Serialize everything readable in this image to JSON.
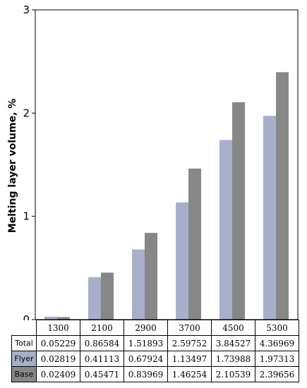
{
  "chart_data": {
    "type": "bar",
    "title": "",
    "xlabel": "",
    "ylabel": "Melting layer volume, %",
    "ylim": [
      0,
      3
    ],
    "yticks": [
      "0",
      "1",
      "2",
      "3"
    ],
    "grid": false,
    "categories": [
      "1300",
      "2100",
      "2900",
      "3700",
      "4500",
      "5300"
    ],
    "series": [
      {
        "name": "Flyer",
        "color": "#a7afca",
        "values": [
          0.02819,
          0.41113,
          0.67924,
          1.13497,
          1.73988,
          1.97313
        ]
      },
      {
        "name": "Base",
        "color": "#878787",
        "values": [
          0.02409,
          0.45471,
          0.83969,
          1.46254,
          2.10539,
          2.39656
        ]
      }
    ],
    "table": {
      "rows": [
        {
          "label": "Total",
          "values": [
            "0.05229",
            "0.86584",
            "1.51893",
            "2.59752",
            "3.84527",
            "4.36969"
          ]
        },
        {
          "label": "Flyer",
          "values": [
            "0.02819",
            "0.41113",
            "0.67924",
            "1.13497",
            "1.73988",
            "1.97313"
          ]
        },
        {
          "label": "Base",
          "values": [
            "0.02409",
            "0.45471",
            "0.83969",
            "1.46254",
            "2.10539",
            "2.39656"
          ]
        }
      ]
    }
  }
}
